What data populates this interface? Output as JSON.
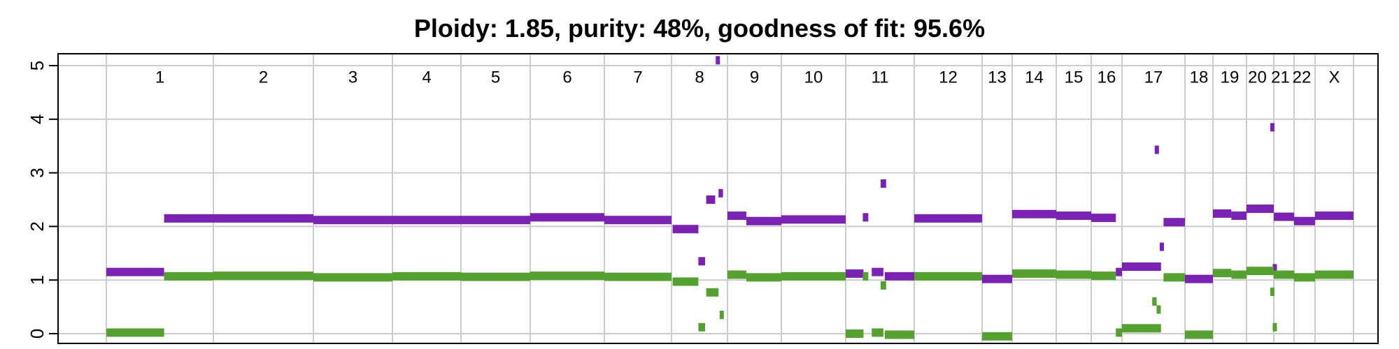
{
  "chart_data": {
    "type": "scatter",
    "title": "Ploidy: 1.85, purity: 48%, goodness of fit: 95.6%",
    "xlabel": "",
    "ylabel": "",
    "ylim": [
      0,
      5
    ],
    "yticks": [
      "0",
      "1",
      "2",
      "3",
      "4",
      "5"
    ],
    "grid": true,
    "colors": {
      "total": "#7b22b5",
      "minor": "#54a12f",
      "grid": "#cccccc"
    },
    "chromosomes": [
      "1",
      "2",
      "3",
      "4",
      "5",
      "6",
      "7",
      "8",
      "9",
      "10",
      "11",
      "12",
      "13",
      "14",
      "15",
      "16",
      "17",
      "18",
      "19",
      "20",
      "21",
      "22",
      "X"
    ],
    "series": [
      {
        "segments": [
          {
            "chrom": "1",
            "start": 0.0,
            "end": 0.54,
            "value": 1.15
          },
          {
            "chrom": "1",
            "start": 0.54,
            "end": 1.0,
            "value": 2.15
          },
          {
            "chrom": "2",
            "start": 0.0,
            "end": 1.0,
            "value": 2.15
          },
          {
            "chrom": "3",
            "start": 0.0,
            "end": 1.0,
            "value": 2.12
          },
          {
            "chrom": "4",
            "start": 0.0,
            "end": 1.0,
            "value": 2.12
          },
          {
            "chrom": "5",
            "start": 0.0,
            "end": 1.0,
            "value": 2.12
          },
          {
            "chrom": "6",
            "start": 0.0,
            "end": 1.0,
            "value": 2.17
          },
          {
            "chrom": "7",
            "start": 0.0,
            "end": 1.0,
            "value": 2.12
          },
          {
            "chrom": "8",
            "start": 0.02,
            "end": 0.48,
            "value": 1.95
          },
          {
            "chrom": "8",
            "start": 0.48,
            "end": 0.6,
            "value": 1.35
          },
          {
            "chrom": "8",
            "start": 0.62,
            "end": 0.78,
            "value": 2.5
          },
          {
            "chrom": "8",
            "start": 0.84,
            "end": 0.92,
            "value": 2.62
          },
          {
            "chrom": "8",
            "start": 0.79,
            "end": 0.86,
            "value": 5.1
          },
          {
            "chrom": "9",
            "start": 0.0,
            "end": 0.35,
            "value": 2.2
          },
          {
            "chrom": "9",
            "start": 0.35,
            "end": 1.0,
            "value": 2.1
          },
          {
            "chrom": "10",
            "start": 0.0,
            "end": 1.0,
            "value": 2.13
          },
          {
            "chrom": "11",
            "start": 0.0,
            "end": 0.26,
            "value": 1.12
          },
          {
            "chrom": "11",
            "start": 0.25,
            "end": 0.33,
            "value": 2.17
          },
          {
            "chrom": "11",
            "start": 0.38,
            "end": 0.55,
            "value": 1.15
          },
          {
            "chrom": "11",
            "start": 0.51,
            "end": 0.59,
            "value": 2.8
          },
          {
            "chrom": "11",
            "start": 0.57,
            "end": 1.0,
            "value": 1.07
          },
          {
            "chrom": "12",
            "start": 0.0,
            "end": 1.0,
            "value": 2.15
          },
          {
            "chrom": "13",
            "start": 0.0,
            "end": 1.0,
            "value": 1.02
          },
          {
            "chrom": "14",
            "start": 0.0,
            "end": 1.0,
            "value": 2.23
          },
          {
            "chrom": "15",
            "start": 0.0,
            "end": 1.0,
            "value": 2.2
          },
          {
            "chrom": "16",
            "start": 0.0,
            "end": 0.8,
            "value": 2.16
          },
          {
            "chrom": "16",
            "start": 0.8,
            "end": 1.0,
            "value": 1.15
          },
          {
            "chrom": "17",
            "start": 0.0,
            "end": 0.62,
            "value": 1.25
          },
          {
            "chrom": "17",
            "start": 0.52,
            "end": 0.58,
            "value": 3.43
          },
          {
            "chrom": "17",
            "start": 0.6,
            "end": 0.64,
            "value": 1.62
          },
          {
            "chrom": "17",
            "start": 0.66,
            "end": 1.0,
            "value": 2.08
          },
          {
            "chrom": "18",
            "start": 0.0,
            "end": 1.0,
            "value": 1.02
          },
          {
            "chrom": "19",
            "start": 0.0,
            "end": 0.55,
            "value": 2.24
          },
          {
            "chrom": "19",
            "start": 0.55,
            "end": 1.0,
            "value": 2.2
          },
          {
            "chrom": "20",
            "start": 0.0,
            "end": 1.0,
            "value": 2.33
          },
          {
            "chrom": "20",
            "start": 0.87,
            "end": 0.97,
            "value": 3.85
          },
          {
            "chrom": "20",
            "start": 0.96,
            "end": 1.0,
            "value": 1.22
          },
          {
            "chrom": "21",
            "start": 0.0,
            "end": 1.0,
            "value": 2.18
          },
          {
            "chrom": "22",
            "start": 0.0,
            "end": 1.0,
            "value": 2.1
          },
          {
            "chrom": "X",
            "start": 0.0,
            "end": 1.0,
            "value": 2.2
          }
        ]
      },
      {
        "segments": [
          {
            "chrom": "1",
            "start": 0.0,
            "end": 0.54,
            "value": 0.02
          },
          {
            "chrom": "1",
            "start": 0.54,
            "end": 1.0,
            "value": 1.07
          },
          {
            "chrom": "2",
            "start": 0.0,
            "end": 1.0,
            "value": 1.08
          },
          {
            "chrom": "3",
            "start": 0.0,
            "end": 1.0,
            "value": 1.05
          },
          {
            "chrom": "4",
            "start": 0.0,
            "end": 1.0,
            "value": 1.07
          },
          {
            "chrom": "5",
            "start": 0.0,
            "end": 1.0,
            "value": 1.06
          },
          {
            "chrom": "6",
            "start": 0.0,
            "end": 1.0,
            "value": 1.08
          },
          {
            "chrom": "7",
            "start": 0.0,
            "end": 1.0,
            "value": 1.06
          },
          {
            "chrom": "8",
            "start": 0.02,
            "end": 0.48,
            "value": 0.97
          },
          {
            "chrom": "8",
            "start": 0.48,
            "end": 0.6,
            "value": 0.12
          },
          {
            "chrom": "8",
            "start": 0.62,
            "end": 0.84,
            "value": 0.77
          },
          {
            "chrom": "8",
            "start": 0.86,
            "end": 0.92,
            "value": 0.35
          },
          {
            "chrom": "9",
            "start": 0.0,
            "end": 0.35,
            "value": 1.1
          },
          {
            "chrom": "9",
            "start": 0.35,
            "end": 1.0,
            "value": 1.05
          },
          {
            "chrom": "10",
            "start": 0.0,
            "end": 1.0,
            "value": 1.07
          },
          {
            "chrom": "11",
            "start": 0.0,
            "end": 0.26,
            "value": 0.0
          },
          {
            "chrom": "11",
            "start": 0.25,
            "end": 0.33,
            "value": 1.07
          },
          {
            "chrom": "11",
            "start": 0.38,
            "end": 0.55,
            "value": 0.02
          },
          {
            "chrom": "11",
            "start": 0.51,
            "end": 0.59,
            "value": 0.9
          },
          {
            "chrom": "11",
            "start": 0.57,
            "end": 1.0,
            "value": -0.02
          },
          {
            "chrom": "12",
            "start": 0.0,
            "end": 1.0,
            "value": 1.07
          },
          {
            "chrom": "13",
            "start": 0.0,
            "end": 1.0,
            "value": -0.05
          },
          {
            "chrom": "14",
            "start": 0.0,
            "end": 1.0,
            "value": 1.12
          },
          {
            "chrom": "15",
            "start": 0.0,
            "end": 1.0,
            "value": 1.1
          },
          {
            "chrom": "16",
            "start": 0.0,
            "end": 0.8,
            "value": 1.08
          },
          {
            "chrom": "16",
            "start": 0.8,
            "end": 1.0,
            "value": 0.02
          },
          {
            "chrom": "17",
            "start": 0.0,
            "end": 0.62,
            "value": 0.1
          },
          {
            "chrom": "17",
            "start": 0.48,
            "end": 0.55,
            "value": 0.6
          },
          {
            "chrom": "17",
            "start": 0.55,
            "end": 0.6,
            "value": 0.45
          },
          {
            "chrom": "17",
            "start": 0.66,
            "end": 1.0,
            "value": 1.05
          },
          {
            "chrom": "18",
            "start": 0.0,
            "end": 1.0,
            "value": -0.02
          },
          {
            "chrom": "19",
            "start": 0.0,
            "end": 0.55,
            "value": 1.13
          },
          {
            "chrom": "19",
            "start": 0.55,
            "end": 1.0,
            "value": 1.1
          },
          {
            "chrom": "20",
            "start": 0.0,
            "end": 1.0,
            "value": 1.17
          },
          {
            "chrom": "20",
            "start": 0.87,
            "end": 0.97,
            "value": 0.78
          },
          {
            "chrom": "20",
            "start": 0.96,
            "end": 1.0,
            "value": 0.12
          },
          {
            "chrom": "21",
            "start": 0.0,
            "end": 1.0,
            "value": 1.1
          },
          {
            "chrom": "22",
            "start": 0.0,
            "end": 1.0,
            "value": 1.05
          },
          {
            "chrom": "X",
            "start": 0.0,
            "end": 1.0,
            "value": 1.1
          }
        ]
      }
    ]
  }
}
